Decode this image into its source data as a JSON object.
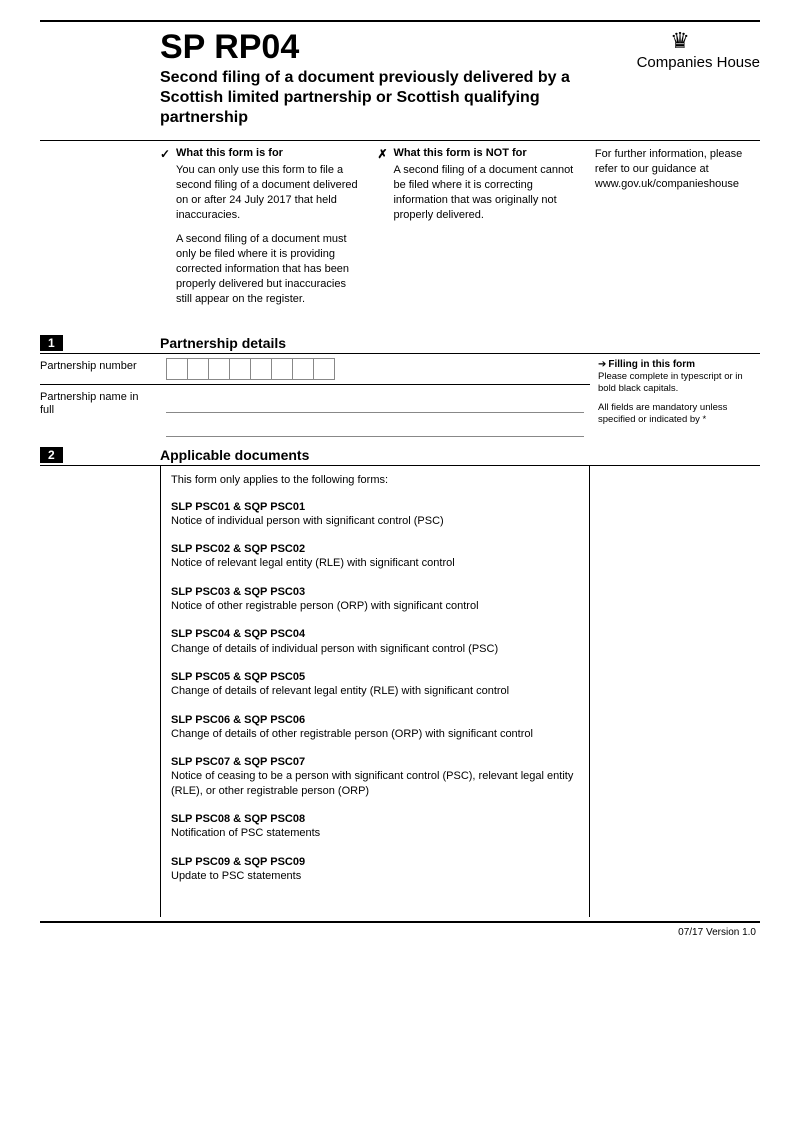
{
  "header": {
    "form_code": "SP RP04",
    "form_title": "Second filing of a document previously delivered by a Scottish limited partnership or Scottish qualifying partnership",
    "agency": "Companies House"
  },
  "info": {
    "for_heading": "What this form is for",
    "for_text1": "You can only use this form to file a second filing of a document delivered on or after 24 July 2017 that held inaccuracies.",
    "for_text2": "A second filing of a document must only be filed where it is providing corrected information that has been properly delivered but inaccuracies still appear on the register.",
    "not_for_heading": "What this form is NOT for",
    "not_for_text": "A second filing of a document cannot be filed where it is correcting information that was originally not properly delivered.",
    "guidance_text": "For further information, please refer to our guidance at www.gov.uk/companieshouse"
  },
  "section1": {
    "num": "1",
    "title": "Partnership details",
    "label_number": "Partnership number",
    "label_name": "Partnership name in full",
    "side_heading": "Filling in this form",
    "side_text1": "Please complete in typescript or in bold black capitals.",
    "side_text2": "All fields are mandatory unless specified or indicated by *"
  },
  "section2": {
    "num": "2",
    "title": "Applicable documents",
    "intro": "This form only applies to the following forms:",
    "docs": [
      {
        "code": "SLP PSC01 & SQP PSC01",
        "desc": "Notice of individual person with significant control (PSC)"
      },
      {
        "code": "SLP PSC02 & SQP PSC02",
        "desc": "Notice of relevant legal entity (RLE) with significant control"
      },
      {
        "code": "SLP PSC03 & SQP PSC03",
        "desc": "Notice of other registrable person (ORP) with significant control"
      },
      {
        "code": "SLP PSC04 & SQP PSC04",
        "desc": "Change of details of individual person with significant control (PSC)"
      },
      {
        "code": "SLP PSC05 & SQP PSC05",
        "desc": "Change of details of relevant legal entity (RLE) with significant control"
      },
      {
        "code": "SLP PSC06 & SQP PSC06",
        "desc": "Change of details of other registrable person (ORP) with significant control"
      },
      {
        "code": "SLP PSC07 & SQP PSC07",
        "desc": "Notice of ceasing to be a person with significant control (PSC), relevant legal entity (RLE), or other registrable person (ORP)"
      },
      {
        "code": "SLP PSC08 & SQP PSC08",
        "desc": "Notification of PSC statements"
      },
      {
        "code": "SLP PSC09 & SQP PSC09",
        "desc": "Update to PSC statements"
      }
    ]
  },
  "footer": {
    "version": "07/17 Version 1.0"
  },
  "colors": {
    "text": "#000000",
    "background": "#ffffff",
    "box_border": "#888888"
  }
}
